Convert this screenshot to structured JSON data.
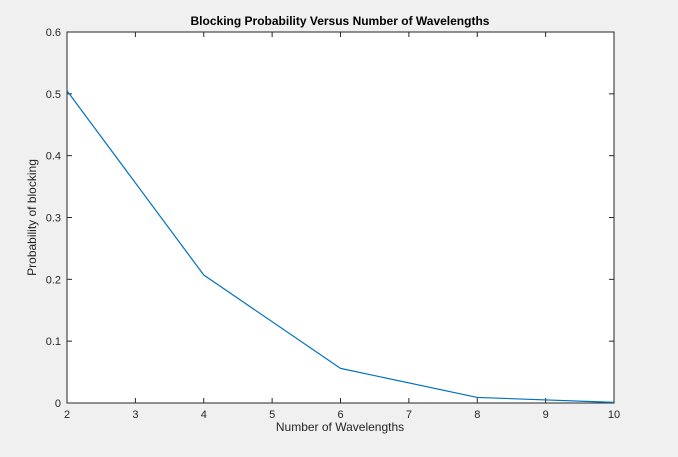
{
  "chart_data": {
    "type": "line",
    "title": "Blocking Probability Versus Number of Wavelengths",
    "xlabel": "Number of Wavelengths",
    "ylabel": "Probability of blocking",
    "xlim": [
      2,
      10
    ],
    "ylim": [
      0,
      0.6
    ],
    "xticks": [
      2,
      3,
      4,
      5,
      6,
      7,
      8,
      9,
      10
    ],
    "xtick_labels": [
      "2",
      "3",
      "4",
      "5",
      "6",
      "7",
      "8",
      "9",
      "10"
    ],
    "yticks": [
      0,
      0.1,
      0.2,
      0.3,
      0.4,
      0.5,
      0.6
    ],
    "ytick_labels": [
      "0",
      "0.1",
      "0.2",
      "0.3",
      "0.4",
      "0.5",
      "0.6"
    ],
    "grid": false,
    "series": [
      {
        "x": [
          2,
          4,
          6,
          8,
          10
        ],
        "values": [
          0.505,
          0.207,
          0.056,
          0.009,
          0.001
        ],
        "color": "#0072bd"
      }
    ]
  }
}
